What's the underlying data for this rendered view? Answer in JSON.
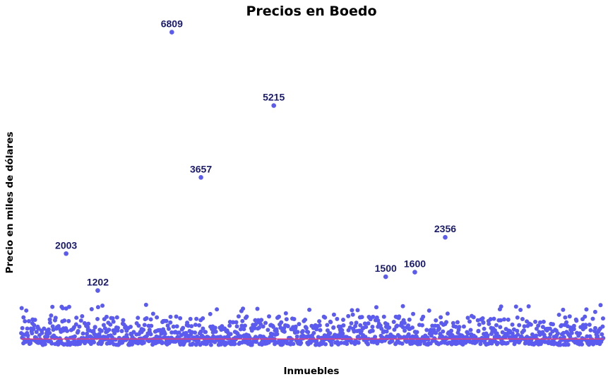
{
  "chart_data": {
    "type": "scatter",
    "title": "Precios en Boedo",
    "xlabel": "Inmuebles",
    "ylabel": "Precio en miles de dólares",
    "ylim": [
      0,
      7200
    ],
    "grid": false,
    "legend": "none",
    "point_color": "#5b5bf0",
    "reference_line_color": "#e0407a",
    "reference_line_value": 150,
    "n_points": 1400,
    "outliers": [
      {
        "x": 108,
        "y": 2003,
        "label": "2003"
      },
      {
        "x": 184,
        "y": 1202,
        "label": "1202"
      },
      {
        "x": 362,
        "y": 6809,
        "label": "6809"
      },
      {
        "x": 432,
        "y": 3657,
        "label": "3657"
      },
      {
        "x": 607,
        "y": 5215,
        "label": "5215"
      },
      {
        "x": 876,
        "y": 1500,
        "label": "1500"
      },
      {
        "x": 946,
        "y": 1600,
        "label": "1600"
      },
      {
        "x": 1019,
        "y": 2356,
        "label": "2356"
      }
    ]
  }
}
